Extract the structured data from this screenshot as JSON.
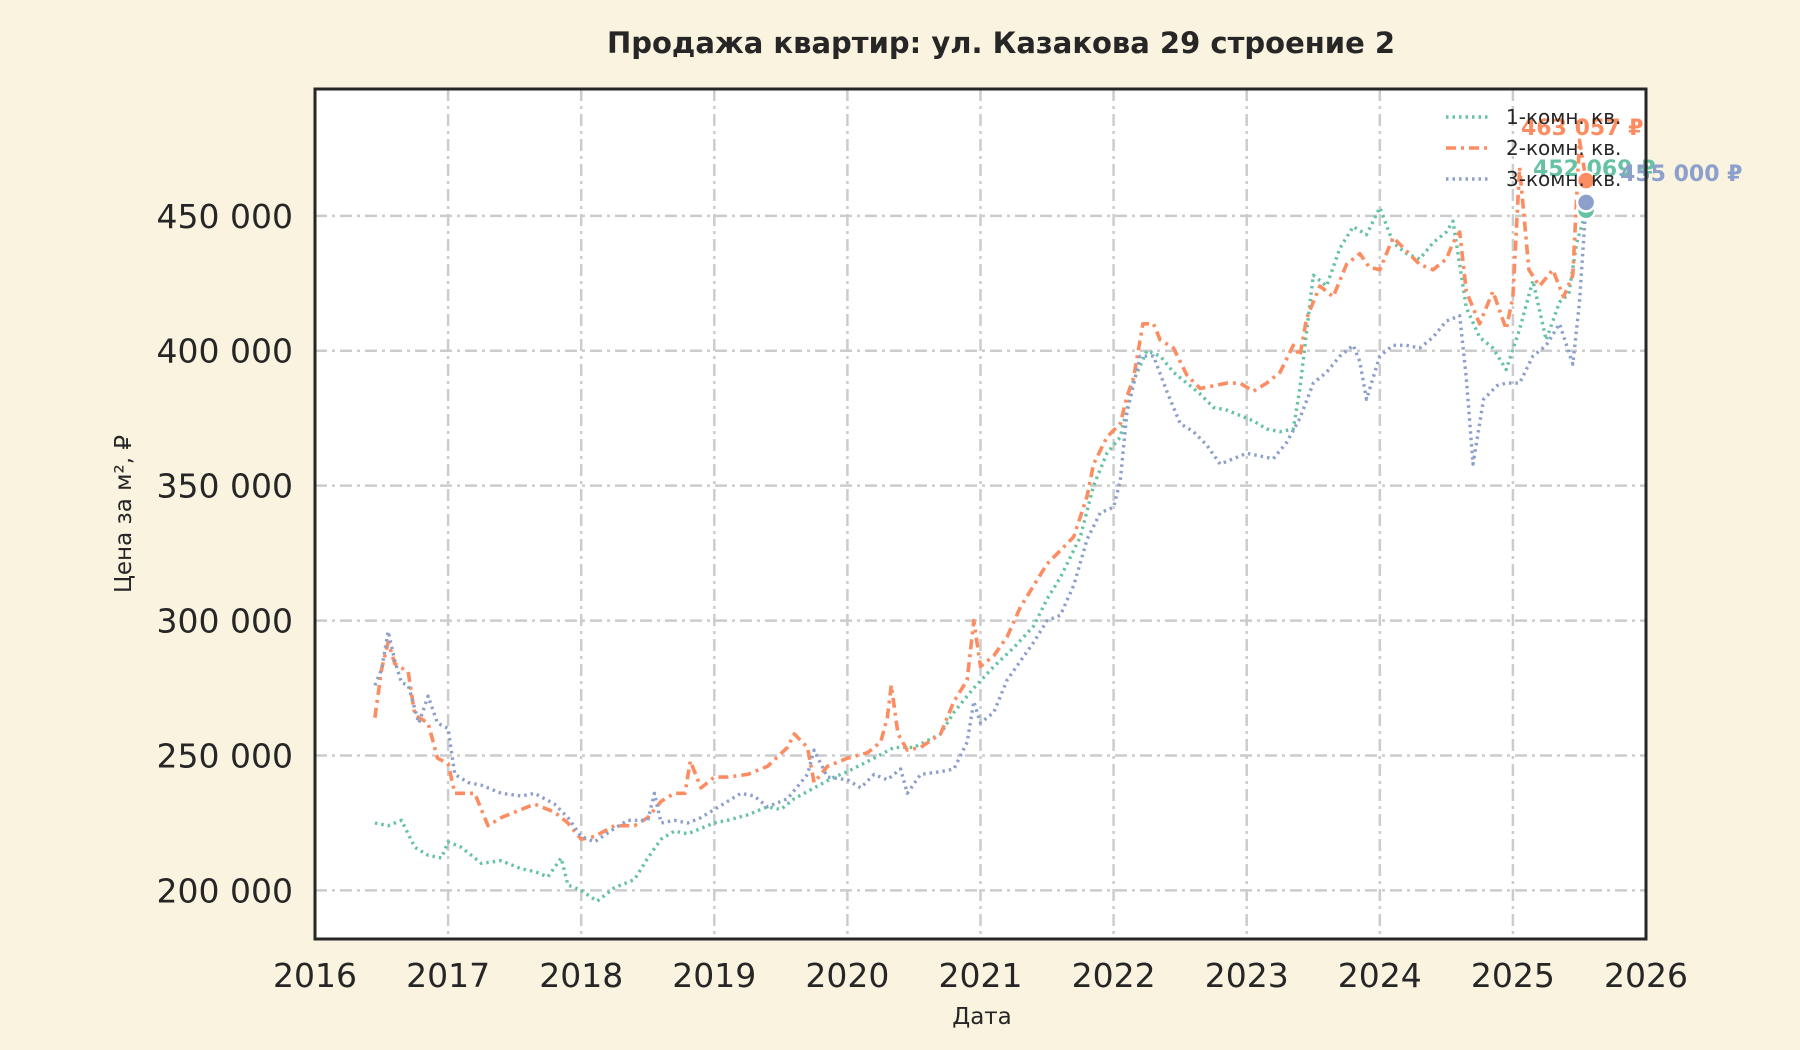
{
  "chart_data": {
    "type": "line",
    "title": "Продажа квартир: ул. Казакова 29 строение 2",
    "xlabel": "Дата",
    "ylabel": "Цена за м², ₽",
    "x_ticks": [
      "2016",
      "2017",
      "2018",
      "2019",
      "2020",
      "2021",
      "2022",
      "2023",
      "2024",
      "2025",
      "2026"
    ],
    "y_ticks": [
      "200 000",
      "250 000",
      "300 000",
      "350 000",
      "400 000",
      "450 000"
    ],
    "xlim": [
      2016.0,
      2026.0
    ],
    "ylim": [
      182000,
      497000
    ],
    "grid": true,
    "legend_position": "top-right",
    "series": [
      {
        "name": "1-комн. кв.",
        "color": "#66c2a5",
        "dash": "dotted",
        "end_value": 452069,
        "end_label": "452 069 ₽",
        "points": [
          [
            2016.45,
            225000
          ],
          [
            2016.55,
            224000
          ],
          [
            2016.65,
            226000
          ],
          [
            2016.75,
            216000
          ],
          [
            2016.85,
            213000
          ],
          [
            2016.95,
            212000
          ],
          [
            2017.0,
            218000
          ],
          [
            2017.1,
            216000
          ],
          [
            2017.25,
            210000
          ],
          [
            2017.4,
            211000
          ],
          [
            2017.55,
            208000
          ],
          [
            2017.65,
            207000
          ],
          [
            2017.75,
            205000
          ],
          [
            2017.85,
            212000
          ],
          [
            2017.9,
            202000
          ],
          [
            2018.0,
            200000
          ],
          [
            2018.12,
            196000
          ],
          [
            2018.25,
            201000
          ],
          [
            2018.4,
            204000
          ],
          [
            2018.5,
            212000
          ],
          [
            2018.6,
            219000
          ],
          [
            2018.7,
            222000
          ],
          [
            2018.8,
            221000
          ],
          [
            2018.9,
            223000
          ],
          [
            2019.0,
            225000
          ],
          [
            2019.1,
            226000
          ],
          [
            2019.25,
            228000
          ],
          [
            2019.4,
            231000
          ],
          [
            2019.5,
            230000
          ],
          [
            2019.6,
            234000
          ],
          [
            2019.75,
            238000
          ],
          [
            2019.9,
            242000
          ],
          [
            2020.0,
            244000
          ],
          [
            2020.2,
            249000
          ],
          [
            2020.35,
            253000
          ],
          [
            2020.5,
            253000
          ],
          [
            2020.7,
            258000
          ],
          [
            2020.8,
            266000
          ],
          [
            2020.95,
            275000
          ],
          [
            2021.1,
            283000
          ],
          [
            2021.25,
            290000
          ],
          [
            2021.4,
            298000
          ],
          [
            2021.5,
            308000
          ],
          [
            2021.6,
            316000
          ],
          [
            2021.75,
            331000
          ],
          [
            2021.85,
            350000
          ],
          [
            2021.95,
            362000
          ],
          [
            2022.05,
            368000
          ],
          [
            2022.15,
            389000
          ],
          [
            2022.25,
            400000
          ],
          [
            2022.35,
            398000
          ],
          [
            2022.45,
            392000
          ],
          [
            2022.55,
            388000
          ],
          [
            2022.65,
            384000
          ],
          [
            2022.75,
            379000
          ],
          [
            2022.85,
            378000
          ],
          [
            2022.95,
            376000
          ],
          [
            2023.05,
            374000
          ],
          [
            2023.15,
            371000
          ],
          [
            2023.25,
            370000
          ],
          [
            2023.35,
            371000
          ],
          [
            2023.4,
            386000
          ],
          [
            2023.5,
            428000
          ],
          [
            2023.6,
            424000
          ],
          [
            2023.7,
            438000
          ],
          [
            2023.8,
            446000
          ],
          [
            2023.9,
            443000
          ],
          [
            2024.0,
            453000
          ],
          [
            2024.1,
            440000
          ],
          [
            2024.2,
            436000
          ],
          [
            2024.3,
            434000
          ],
          [
            2024.4,
            440000
          ],
          [
            2024.5,
            444000
          ],
          [
            2024.55,
            448000
          ],
          [
            2024.65,
            416000
          ],
          [
            2024.75,
            405000
          ],
          [
            2024.85,
            401000
          ],
          [
            2024.95,
            393000
          ],
          [
            2025.05,
            408000
          ],
          [
            2025.15,
            426000
          ],
          [
            2025.25,
            404000
          ],
          [
            2025.35,
            418000
          ],
          [
            2025.42,
            421000
          ],
          [
            2025.48,
            440000
          ],
          [
            2025.55,
            452069
          ]
        ]
      },
      {
        "name": "2-комн. кв.",
        "color": "#fc8d62",
        "dash": "dashdot",
        "end_value": 463057,
        "end_label": "463 057 ₽",
        "points": [
          [
            2016.45,
            264000
          ],
          [
            2016.5,
            282000
          ],
          [
            2016.55,
            292000
          ],
          [
            2016.6,
            284000
          ],
          [
            2016.7,
            281000
          ],
          [
            2016.75,
            265000
          ],
          [
            2016.85,
            262000
          ],
          [
            2016.92,
            249000
          ],
          [
            2017.0,
            247000
          ],
          [
            2017.05,
            236000
          ],
          [
            2017.2,
            236000
          ],
          [
            2017.3,
            224000
          ],
          [
            2017.4,
            227000
          ],
          [
            2017.55,
            230000
          ],
          [
            2017.65,
            232000
          ],
          [
            2017.8,
            229000
          ],
          [
            2017.9,
            225000
          ],
          [
            2018.0,
            219000
          ],
          [
            2018.1,
            220000
          ],
          [
            2018.25,
            224000
          ],
          [
            2018.4,
            224000
          ],
          [
            2018.5,
            227000
          ],
          [
            2018.6,
            233000
          ],
          [
            2018.7,
            236000
          ],
          [
            2018.78,
            236000
          ],
          [
            2018.82,
            248000
          ],
          [
            2018.9,
            238000
          ],
          [
            2019.0,
            242000
          ],
          [
            2019.1,
            242000
          ],
          [
            2019.25,
            243000
          ],
          [
            2019.4,
            246000
          ],
          [
            2019.55,
            253000
          ],
          [
            2019.6,
            258000
          ],
          [
            2019.7,
            253000
          ],
          [
            2019.75,
            240000
          ],
          [
            2019.85,
            246000
          ],
          [
            2020.0,
            249000
          ],
          [
            2020.15,
            251000
          ],
          [
            2020.25,
            255000
          ],
          [
            2020.3,
            264000
          ],
          [
            2020.33,
            276000
          ],
          [
            2020.38,
            258000
          ],
          [
            2020.45,
            252000
          ],
          [
            2020.55,
            253000
          ],
          [
            2020.7,
            258000
          ],
          [
            2020.8,
            270000
          ],
          [
            2020.9,
            278000
          ],
          [
            2020.95,
            300000
          ],
          [
            2021.0,
            283000
          ],
          [
            2021.1,
            287000
          ],
          [
            2021.2,
            294000
          ],
          [
            2021.3,
            305000
          ],
          [
            2021.4,
            313000
          ],
          [
            2021.5,
            321000
          ],
          [
            2021.6,
            326000
          ],
          [
            2021.7,
            331000
          ],
          [
            2021.8,
            346000
          ],
          [
            2021.85,
            358000
          ],
          [
            2021.95,
            368000
          ],
          [
            2022.05,
            373000
          ],
          [
            2022.1,
            383000
          ],
          [
            2022.15,
            390000
          ],
          [
            2022.22,
            410000
          ],
          [
            2022.3,
            410000
          ],
          [
            2022.35,
            404000
          ],
          [
            2022.45,
            401000
          ],
          [
            2022.55,
            391000
          ],
          [
            2022.65,
            386000
          ],
          [
            2022.75,
            387000
          ],
          [
            2022.85,
            388000
          ],
          [
            2022.95,
            388000
          ],
          [
            2023.05,
            385000
          ],
          [
            2023.15,
            388000
          ],
          [
            2023.25,
            392000
          ],
          [
            2023.35,
            402000
          ],
          [
            2023.4,
            398000
          ],
          [
            2023.45,
            412000
          ],
          [
            2023.55,
            424000
          ],
          [
            2023.65,
            420000
          ],
          [
            2023.75,
            432000
          ],
          [
            2023.85,
            436000
          ],
          [
            2023.92,
            431000
          ],
          [
            2024.0,
            430000
          ],
          [
            2024.1,
            442000
          ],
          [
            2024.2,
            437000
          ],
          [
            2024.3,
            432000
          ],
          [
            2024.4,
            430000
          ],
          [
            2024.5,
            434000
          ],
          [
            2024.55,
            440000
          ],
          [
            2024.6,
            444000
          ],
          [
            2024.65,
            422000
          ],
          [
            2024.75,
            410000
          ],
          [
            2024.85,
            422000
          ],
          [
            2024.95,
            408000
          ],
          [
            2025.0,
            420000
          ],
          [
            2025.05,
            468000
          ],
          [
            2025.12,
            430000
          ],
          [
            2025.2,
            424000
          ],
          [
            2025.3,
            430000
          ],
          [
            2025.38,
            420000
          ],
          [
            2025.45,
            428000
          ],
          [
            2025.5,
            478000
          ],
          [
            2025.55,
            463057
          ]
        ]
      },
      {
        "name": "3-комн. кв.",
        "color": "#8da0cb",
        "dash": "dotted",
        "end_value": 455000,
        "end_label": "455 000 ₽",
        "points": [
          [
            2016.45,
            276000
          ],
          [
            2016.5,
            282000
          ],
          [
            2016.55,
            296000
          ],
          [
            2016.6,
            285000
          ],
          [
            2016.65,
            277000
          ],
          [
            2016.7,
            276000
          ],
          [
            2016.78,
            262000
          ],
          [
            2016.85,
            272000
          ],
          [
            2016.92,
            262000
          ],
          [
            2017.0,
            260000
          ],
          [
            2017.05,
            243000
          ],
          [
            2017.15,
            240000
          ],
          [
            2017.25,
            239000
          ],
          [
            2017.4,
            236000
          ],
          [
            2017.55,
            235000
          ],
          [
            2017.65,
            236000
          ],
          [
            2017.8,
            232000
          ],
          [
            2017.9,
            227000
          ],
          [
            2018.0,
            220000
          ],
          [
            2018.1,
            218000
          ],
          [
            2018.25,
            223000
          ],
          [
            2018.35,
            226000
          ],
          [
            2018.5,
            226000
          ],
          [
            2018.55,
            236000
          ],
          [
            2018.6,
            225000
          ],
          [
            2018.7,
            226000
          ],
          [
            2018.8,
            225000
          ],
          [
            2018.9,
            227000
          ],
          [
            2019.0,
            230000
          ],
          [
            2019.1,
            233000
          ],
          [
            2019.2,
            236000
          ],
          [
            2019.3,
            235000
          ],
          [
            2019.4,
            231000
          ],
          [
            2019.55,
            234000
          ],
          [
            2019.7,
            243000
          ],
          [
            2019.75,
            252000
          ],
          [
            2019.85,
            242000
          ],
          [
            2020.0,
            241000
          ],
          [
            2020.1,
            238000
          ],
          [
            2020.2,
            243000
          ],
          [
            2020.3,
            241000
          ],
          [
            2020.4,
            245000
          ],
          [
            2020.45,
            236000
          ],
          [
            2020.55,
            243000
          ],
          [
            2020.7,
            244000
          ],
          [
            2020.8,
            245000
          ],
          [
            2020.9,
            255000
          ],
          [
            2020.95,
            270000
          ],
          [
            2021.0,
            262000
          ],
          [
            2021.1,
            266000
          ],
          [
            2021.2,
            278000
          ],
          [
            2021.3,
            285000
          ],
          [
            2021.4,
            292000
          ],
          [
            2021.5,
            300000
          ],
          [
            2021.6,
            302000
          ],
          [
            2021.7,
            313000
          ],
          [
            2021.8,
            330000
          ],
          [
            2021.9,
            340000
          ],
          [
            2022.0,
            342000
          ],
          [
            2022.05,
            352000
          ],
          [
            2022.1,
            377000
          ],
          [
            2022.2,
            398000
          ],
          [
            2022.3,
            398000
          ],
          [
            2022.4,
            385000
          ],
          [
            2022.5,
            373000
          ],
          [
            2022.6,
            370000
          ],
          [
            2022.7,
            365000
          ],
          [
            2022.8,
            358000
          ],
          [
            2022.9,
            360000
          ],
          [
            2023.0,
            362000
          ],
          [
            2023.1,
            361000
          ],
          [
            2023.2,
            360000
          ],
          [
            2023.3,
            366000
          ],
          [
            2023.4,
            375000
          ],
          [
            2023.5,
            388000
          ],
          [
            2023.6,
            392000
          ],
          [
            2023.7,
            398000
          ],
          [
            2023.8,
            402000
          ],
          [
            2023.85,
            396000
          ],
          [
            2023.9,
            382000
          ],
          [
            2024.0,
            398000
          ],
          [
            2024.1,
            402000
          ],
          [
            2024.2,
            402000
          ],
          [
            2024.3,
            401000
          ],
          [
            2024.4,
            405000
          ],
          [
            2024.5,
            411000
          ],
          [
            2024.6,
            413000
          ],
          [
            2024.65,
            390000
          ],
          [
            2024.7,
            358000
          ],
          [
            2024.78,
            382000
          ],
          [
            2024.88,
            387000
          ],
          [
            2024.95,
            388000
          ],
          [
            2025.05,
            388000
          ],
          [
            2025.15,
            398000
          ],
          [
            2025.25,
            402000
          ],
          [
            2025.35,
            410000
          ],
          [
            2025.45,
            395000
          ],
          [
            2025.5,
            418000
          ],
          [
            2025.55,
            455000
          ]
        ]
      }
    ]
  }
}
